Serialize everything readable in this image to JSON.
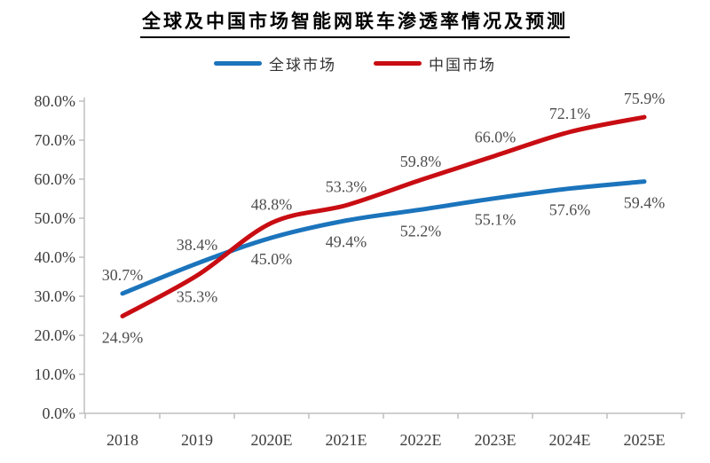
{
  "title": "全球及中国市场智能网联车渗透率情况及预测",
  "legend": {
    "global_label": "全球市场",
    "china_label": "中国市场"
  },
  "chart_data": {
    "type": "line",
    "title": "全球及中国市场智能网联车渗透率情况及预测",
    "categories": [
      "2018",
      "2019",
      "2020E",
      "2021E",
      "2022E",
      "2023E",
      "2024E",
      "2025E"
    ],
    "series": [
      {
        "name": "全球市场",
        "color": "#1B74BC",
        "values": [
          30.7,
          38.4,
          45.0,
          49.4,
          52.2,
          55.1,
          57.6,
          59.4
        ]
      },
      {
        "name": "中国市场",
        "color": "#C80D13",
        "values": [
          24.9,
          35.3,
          48.8,
          53.3,
          59.8,
          66.0,
          72.1,
          75.9
        ]
      }
    ],
    "xlabel": "",
    "ylabel": "",
    "ylim": [
      0,
      80
    ],
    "ytick_step": 10,
    "ytick_suffix": "%",
    "ytick_decimals": 1,
    "data_labels": true,
    "data_label_decimals": 1,
    "data_label_suffix": "%",
    "grid": false,
    "legend_position": "top",
    "axis_color": "#BFBFBF",
    "tick_label_color": "#3D3D3D",
    "data_label_color": "#4D4D4D"
  }
}
